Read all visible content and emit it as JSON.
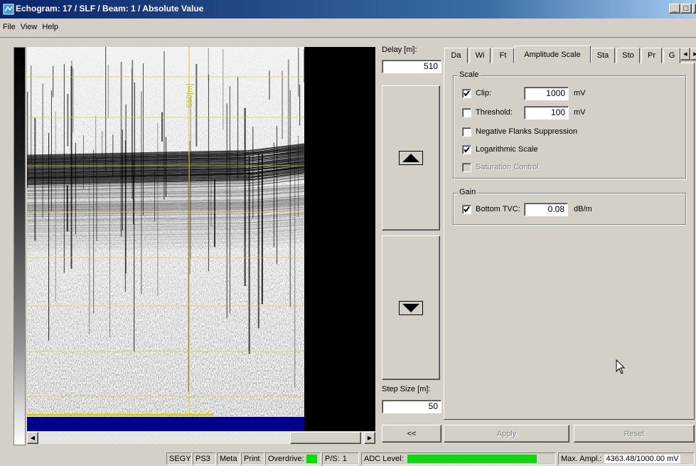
{
  "window": {
    "title": "Echogram: 17 / SLF / Beam: 1 / Absolute Value"
  },
  "menu": [
    "File",
    "View",
    "Help"
  ],
  "echogram": {
    "depth_label": "550[m]"
  },
  "controls": {
    "delay_label": "Delay [m]:",
    "delay_value": "510",
    "step_label": "Step Size [m]:",
    "step_value": "50",
    "back_button": "<<"
  },
  "tabs": {
    "items": [
      "Da",
      "Wi",
      "Ft",
      "Amplitude Scale",
      "Sta",
      "Sto",
      "Pr",
      "G"
    ],
    "selected": 3
  },
  "scale_group": {
    "title": "Scale",
    "options": [
      {
        "label": "Clip:",
        "checked": true,
        "value": "1000",
        "unit": "mV"
      },
      {
        "label": "Threshold:",
        "checked": false,
        "value": "100",
        "unit": "mV"
      },
      {
        "label": "Negative Flanks Suppression",
        "checked": false
      },
      {
        "label": "Logarithmic Scale",
        "checked": true
      },
      {
        "label": "Saturation Control",
        "checked": false,
        "enabled": false
      }
    ]
  },
  "gain_group": {
    "title": "Gain",
    "options": [
      {
        "label": "Bottom TVC:",
        "checked": true,
        "value": "0.08",
        "unit": "dB/m"
      }
    ]
  },
  "buttons": {
    "apply": {
      "label": "Apply",
      "enabled": false
    },
    "reset": {
      "label": "Reset",
      "enabled": false
    }
  },
  "status_bar": {
    "items": [
      "SEGY",
      "PS3",
      "Meta",
      "Print"
    ],
    "overdrive_label": "Overdrive:",
    "ps_label": "P/S:",
    "ps_value": "1",
    "adc_label": "ADC Level:",
    "max_label": "Max. Ampl.:",
    "max_value": "4363.48/1000.00 mV"
  }
}
